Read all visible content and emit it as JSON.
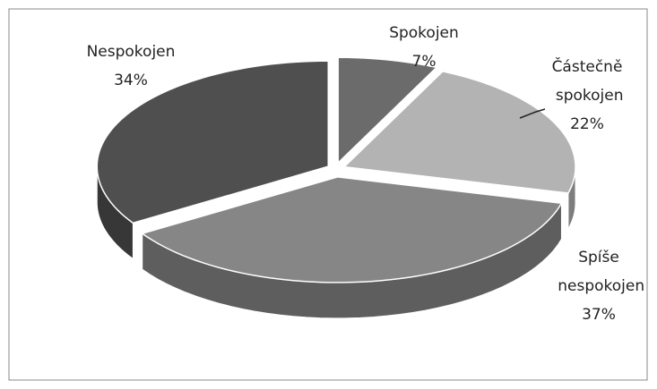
{
  "chart_data": {
    "type": "pie",
    "categories": [
      "Spokojen",
      "Částečně spokojen",
      "Spíše nespokojen",
      "Nespokojen"
    ],
    "values": [
      7,
      22,
      37,
      34
    ],
    "value_labels": [
      "7%",
      "22%",
      "37%",
      "34%"
    ],
    "colors": [
      "#6b6b6b",
      "#b3b3b3",
      "#868686",
      "#4f4f4f"
    ]
  }
}
